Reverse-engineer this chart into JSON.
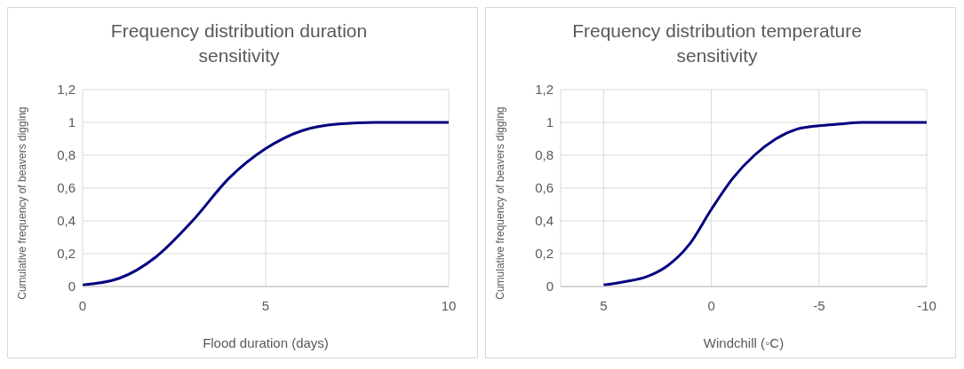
{
  "chart_data": [
    {
      "type": "line",
      "title": "Frequency distribution duration sensitivity",
      "xlabel": "Flood duration (days)",
      "ylabel": "Cumulative frequency of beavers digging",
      "x": [
        0,
        1,
        2,
        3,
        4,
        5,
        6,
        7,
        8,
        9,
        10
      ],
      "series": [
        {
          "color": "#000080",
          "values": [
            0.01,
            0.05,
            0.18,
            0.4,
            0.66,
            0.84,
            0.95,
            0.99,
            1,
            1,
            1
          ]
        }
      ],
      "xlim": [
        0,
        10
      ],
      "xticks": [
        0,
        5,
        10
      ],
      "ylim": [
        0,
        1.2
      ],
      "yticks": [
        {
          "value": 0,
          "label": "0"
        },
        {
          "value": 0.2,
          "label": "0,2"
        },
        {
          "value": 0.4,
          "label": "0,4"
        },
        {
          "value": 0.6,
          "label": "0,6"
        },
        {
          "value": 0.8,
          "label": "0,8"
        },
        {
          "value": 1,
          "label": "1"
        },
        {
          "value": 1.2,
          "label": "1,2"
        }
      ],
      "grid": true,
      "legend": false,
      "marker": "none",
      "line_style": "solid"
    },
    {
      "type": "line",
      "title": "Frequency distribution temperature sensitivity",
      "xlabel": "Windchill (◦C)",
      "ylabel": "Cumulative frequency of beavers digging",
      "x": [
        5,
        4,
        3,
        2,
        1,
        0,
        -1,
        -2,
        -3,
        -4,
        -5,
        -6,
        -7,
        -8,
        -9,
        -10
      ],
      "series": [
        {
          "color": "#000080",
          "values": [
            0.01,
            0.03,
            0.06,
            0.13,
            0.26,
            0.47,
            0.66,
            0.8,
            0.9,
            0.96,
            0.98,
            0.99,
            1,
            1,
            1,
            1
          ]
        }
      ],
      "xlim": [
        7,
        -10
      ],
      "xticks": [
        5,
        0,
        -5,
        -10
      ],
      "ylim": [
        0,
        1.2
      ],
      "yticks": [
        {
          "value": 0,
          "label": "0"
        },
        {
          "value": 0.2,
          "label": "0,2"
        },
        {
          "value": 0.4,
          "label": "0,4"
        },
        {
          "value": 0.6,
          "label": "0,6"
        },
        {
          "value": 0.8,
          "label": "0,8"
        },
        {
          "value": 1,
          "label": "1"
        },
        {
          "value": 1.2,
          "label": "1,2"
        }
      ],
      "grid": true,
      "legend": false,
      "marker": "none",
      "line_style": "solid"
    }
  ]
}
